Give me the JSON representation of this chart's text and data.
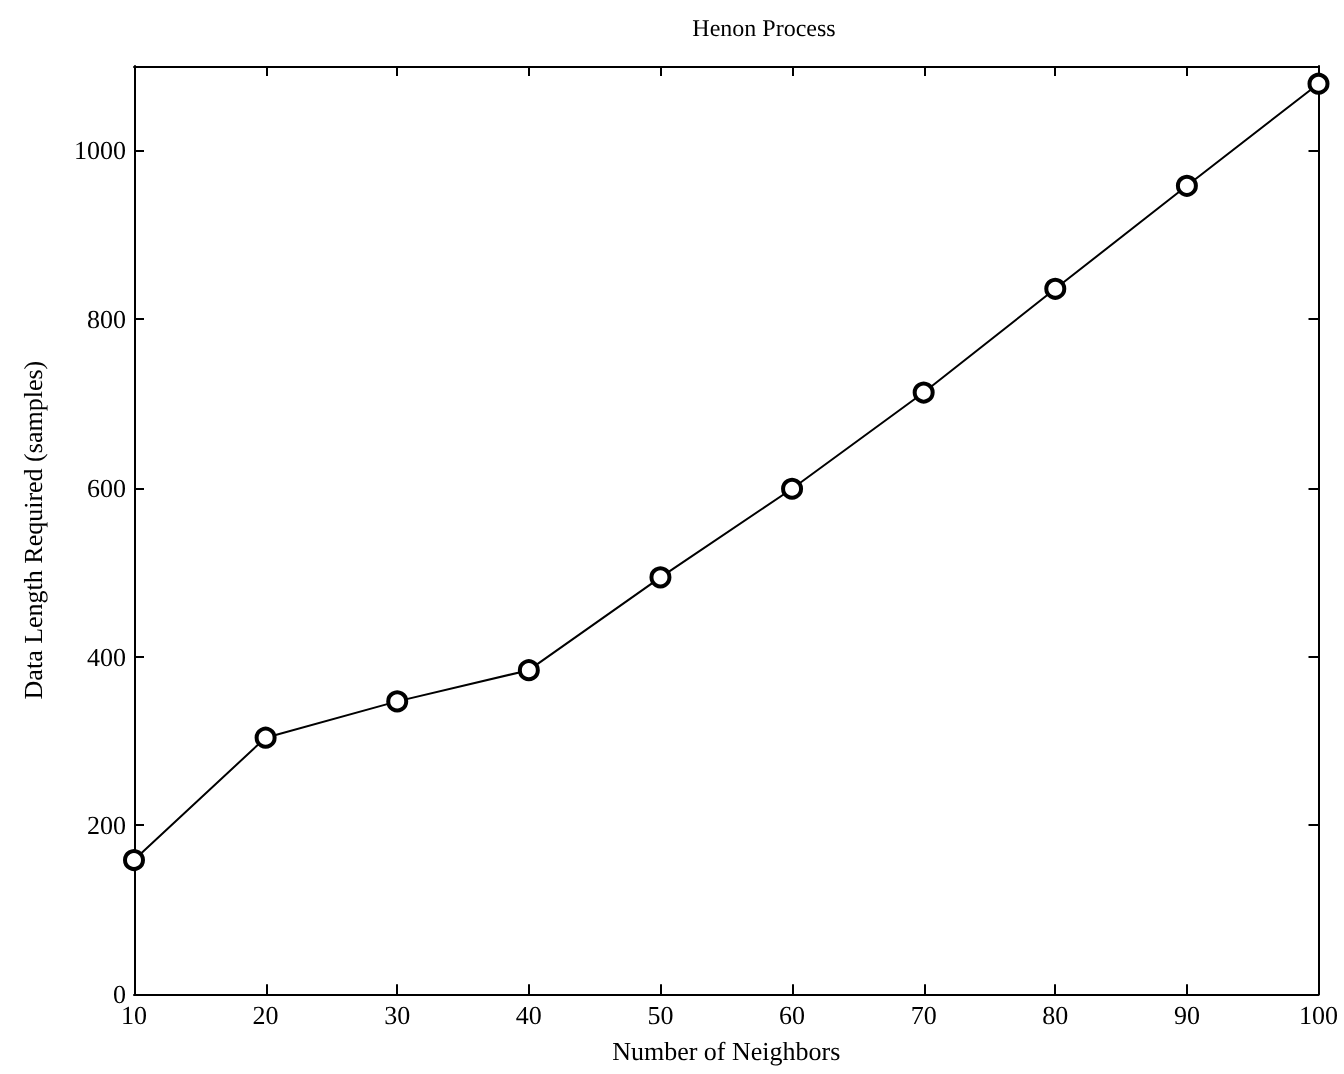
{
  "chart_data": {
    "type": "line",
    "title": "Henon Process",
    "xlabel": "Number of Neighbors",
    "ylabel": "Data Length Required (samples)",
    "x": [
      10,
      20,
      30,
      40,
      50,
      60,
      70,
      80,
      90,
      100
    ],
    "series": [
      {
        "color": "#000000",
        "values": [
          159,
          304,
          347,
          384,
          494,
          599,
          713,
          836,
          958,
          1079
        ]
      }
    ],
    "xlim": [
      10,
      100
    ],
    "xticks": [
      10,
      20,
      30,
      40,
      50,
      60,
      70,
      80,
      90,
      100
    ],
    "ylim": [
      0,
      1100
    ],
    "yticks": [
      0,
      200,
      400,
      600,
      800,
      1000
    ],
    "grid": false,
    "marker": "circle",
    "line_style": "solid"
  }
}
